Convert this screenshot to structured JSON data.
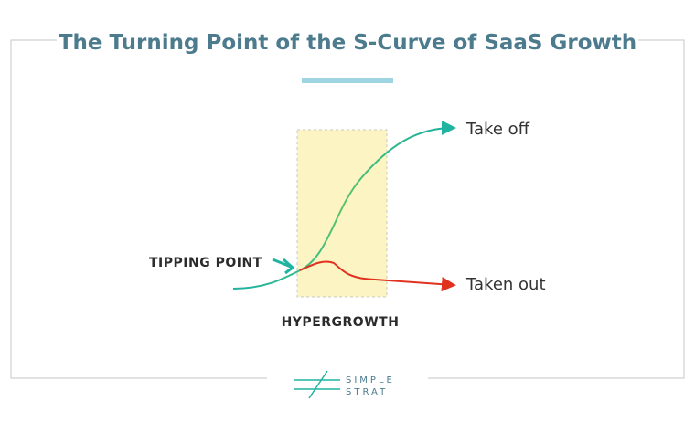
{
  "header": {
    "title": "The Turning Point of the S-Curve of SaaS Growth"
  },
  "diagram": {
    "take_off": "Take off",
    "taken_out": "Taken out",
    "tipping_point": "TIPPING POINT",
    "hypergrowth": "HYPERGROWTH"
  },
  "logo": {
    "line1": "SIMPLE",
    "line2": "STRAT"
  }
}
